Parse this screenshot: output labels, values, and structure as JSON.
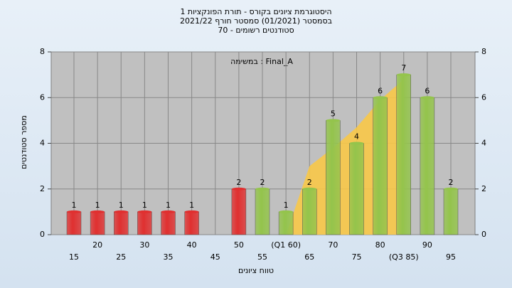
{
  "chart_data": {
    "type": "bar",
    "title": [
      "היסטוגרמת ציונים בקורס - תורת הפונקציות 1",
      "בסמסטר  (01/2021)  סמסטר חורף 2021/22",
      "סטודנטים רשומים - 70"
    ],
    "annotation": "במשימה : Final_A",
    "xlabel": "טווח ציונים",
    "ylabel": "מספר סטודנטים",
    "categories": [
      "15",
      "20",
      "25",
      "30",
      "35",
      "40",
      "45",
      "50",
      "55",
      "(Q1 60)",
      "65",
      "70",
      "75",
      "80",
      "(Q3 85)",
      "90",
      "95"
    ],
    "values": [
      1,
      1,
      1,
      1,
      1,
      1,
      0,
      2,
      2,
      1,
      2,
      5,
      4,
      6,
      7,
      6,
      2
    ],
    "colors": [
      "#e03030",
      "#e03030",
      "#e03030",
      "#e03030",
      "#e03030",
      "#e03030",
      "#e03030",
      "#e03030",
      "#94c44c",
      "#94c44c",
      "#94c44c",
      "#94c44c",
      "#94c44c",
      "#94c44c",
      "#94c44c",
      "#94c44c",
      "#94c44c"
    ],
    "curve": {
      "color": "#f8c848",
      "values": [
        null,
        null,
        null,
        null,
        null,
        null,
        null,
        null,
        null,
        0,
        3,
        3.8,
        4.7,
        5.9,
        6.8,
        null,
        null
      ]
    },
    "ylim": [
      0,
      8
    ],
    "yticks": [
      0,
      2,
      4,
      6,
      8
    ],
    "y2lim": [
      0,
      8
    ],
    "y2ticks": [
      0,
      2,
      4,
      6,
      8
    ],
    "grid": true
  }
}
